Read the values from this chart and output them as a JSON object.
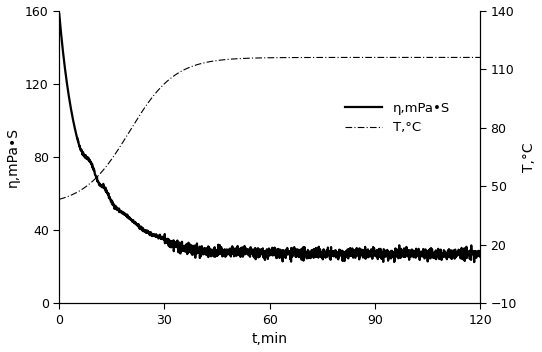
{
  "title": "",
  "xlabel": "t,min",
  "ylabel_left": "η,mPa•S",
  "ylabel_right": "T,°C",
  "xlim": [
    0,
    120
  ],
  "ylim_left": [
    0,
    160
  ],
  "ylim_right": [
    -10,
    140
  ],
  "xticks": [
    0,
    30,
    60,
    90,
    120
  ],
  "yticks_left": [
    0,
    40,
    80,
    120,
    160
  ],
  "yticks_right": [
    -10,
    20,
    50,
    80,
    110,
    140
  ],
  "legend_eta": "η,mPa•S",
  "legend_T": "T,°C",
  "background_color": "#ffffff",
  "line_color": "#000000",
  "linewidth_eta": 1.6,
  "linewidth_T": 0.8,
  "figsize": [
    5.42,
    3.52
  ],
  "dpi": 100
}
